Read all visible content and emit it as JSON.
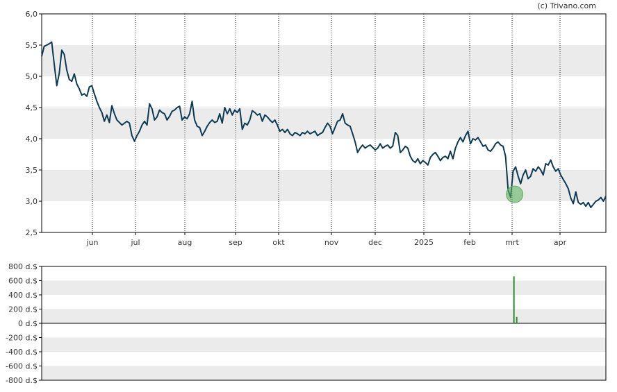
{
  "credit": "(c) Trivano.com",
  "colors": {
    "line": "#0b3a52",
    "band": "#ebebeb",
    "axis": "#000000",
    "marker": "#5fb15f",
    "volume": "#2e8b2e"
  },
  "chart_data": [
    {
      "type": "line",
      "name": "price",
      "ylim": [
        2.5,
        6.0
      ],
      "y_ticks": [
        "6,0",
        "5,5",
        "5,0",
        "4,5",
        "4,0",
        "3,5",
        "3,0",
        "2,5"
      ],
      "x_ticks": [
        "jun",
        "jul",
        "aug",
        "sep",
        "okt",
        "nov",
        "dec",
        "2025",
        "feb",
        "mrt",
        "apr"
      ],
      "grid": "vertical dotted at month starts, horizontal alternating bands",
      "series": [
        {
          "values": [
            5.32,
            5.48,
            5.5,
            5.52,
            5.55,
            5.2,
            4.85,
            5.05,
            5.42,
            5.35,
            5.1,
            4.95,
            4.92,
            5.04,
            4.88,
            4.8,
            4.7,
            4.72,
            4.68,
            4.83,
            4.85,
            4.72,
            4.6,
            4.5,
            4.42,
            4.28,
            4.38,
            4.26,
            4.53,
            4.4,
            4.3,
            4.26,
            4.22,
            4.25,
            4.28,
            4.25,
            4.05,
            3.96,
            4.05,
            4.12,
            4.22,
            4.28,
            4.22,
            4.56,
            4.48,
            4.3,
            4.35,
            4.46,
            4.42,
            4.4,
            4.3,
            4.36,
            4.44,
            4.46,
            4.5,
            4.52,
            4.3,
            4.35,
            4.32,
            4.4,
            4.6,
            4.3,
            4.2,
            4.18,
            4.05,
            4.12,
            4.2,
            4.26,
            4.3,
            4.26,
            4.28,
            4.4,
            4.25,
            4.5,
            4.4,
            4.48,
            4.38,
            4.46,
            4.42,
            4.48,
            4.15,
            4.25,
            4.22,
            4.3,
            4.45,
            4.42,
            4.38,
            4.4,
            4.28,
            4.38,
            4.35,
            4.3,
            4.26,
            4.3,
            4.22,
            4.12,
            4.15,
            4.1,
            4.15,
            4.08,
            4.05,
            4.1,
            4.08,
            4.05,
            4.1,
            4.08,
            4.12,
            4.08,
            4.1,
            4.12,
            4.05,
            4.08,
            4.1,
            4.18,
            4.25,
            4.2,
            4.08,
            4.18,
            4.28,
            4.3,
            4.4,
            4.25,
            4.22,
            4.2,
            4.08,
            3.95,
            3.78,
            3.85,
            3.9,
            3.85,
            3.88,
            3.9,
            3.86,
            3.82,
            3.85,
            3.92,
            3.85,
            3.88,
            3.9,
            3.85,
            3.88,
            4.1,
            4.05,
            3.78,
            3.82,
            3.88,
            3.85,
            3.72,
            3.65,
            3.62,
            3.68,
            3.6,
            3.65,
            3.62,
            3.58,
            3.7,
            3.75,
            3.78,
            3.72,
            3.65,
            3.7,
            3.72,
            3.68,
            3.8,
            3.68,
            3.85,
            3.95,
            4.02,
            3.95,
            4.05,
            4.12,
            3.92,
            4.0,
            3.98,
            4.02,
            3.95,
            3.88,
            3.9,
            3.82,
            3.8,
            3.85,
            3.92,
            3.95,
            3.9,
            3.88,
            3.72,
            3.18,
            3.06,
            3.48,
            3.55,
            3.4,
            3.28,
            3.42,
            3.5,
            3.36,
            3.4,
            3.52,
            3.48,
            3.55,
            3.5,
            3.42,
            3.6,
            3.58,
            3.66,
            3.55,
            3.48,
            3.52,
            3.42,
            3.35,
            3.28,
            3.2,
            3.05,
            2.96,
            3.15,
            2.98,
            2.95,
            2.98,
            2.92,
            2.98,
            2.9,
            2.95,
            3.0,
            3.02,
            3.06,
            3.0,
            3.08
          ]
        }
      ],
      "markers": [
        {
          "label": "event",
          "x_fraction_of_series": 0.8382,
          "y": 3.11
        }
      ]
    },
    {
      "type": "bar",
      "name": "dividend-volume",
      "ylim": [
        -800,
        800
      ],
      "y_ticks": [
        "800 d.$",
        "600 d.$",
        "400 d.$",
        "200 d.$",
        "0 d.$",
        "-200 d.$",
        "-400 d.$",
        "-600 d.$",
        "-800 d.$"
      ],
      "bars": [
        {
          "x_fraction_of_series": 0.837,
          "value": 660
        },
        {
          "x_fraction_of_series": 0.842,
          "value": 90
        }
      ]
    }
  ]
}
